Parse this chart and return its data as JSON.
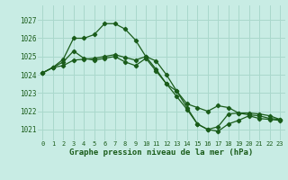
{
  "title": "Graphe pression niveau de la mer (hPa)",
  "bg_color": "#c8ece4",
  "grid_color": "#aad8cc",
  "line_color": "#1a5c1a",
  "marker_color": "#1a5c1a",
  "xlim": [
    -0.5,
    23.5
  ],
  "ylim": [
    1020.4,
    1027.8
  ],
  "yticks": [
    1021,
    1022,
    1023,
    1024,
    1025,
    1026,
    1027
  ],
  "xticks": [
    0,
    1,
    2,
    3,
    4,
    5,
    6,
    7,
    8,
    9,
    10,
    11,
    12,
    13,
    14,
    15,
    16,
    17,
    18,
    19,
    20,
    21,
    22,
    23
  ],
  "series1": [
    1024.1,
    1024.4,
    1024.5,
    1024.8,
    1024.85,
    1024.9,
    1025.0,
    1025.1,
    1024.95,
    1024.8,
    1025.0,
    1024.3,
    1023.5,
    1023.1,
    1022.4,
    1022.2,
    1022.0,
    1022.3,
    1022.2,
    1021.9,
    1021.8,
    1021.75,
    1021.6,
    1021.55
  ],
  "series2": [
    1024.1,
    1024.4,
    1024.85,
    1026.0,
    1026.0,
    1026.2,
    1026.8,
    1026.8,
    1026.5,
    1025.9,
    1025.0,
    1024.75,
    1024.0,
    1023.1,
    1022.2,
    1021.3,
    1021.0,
    1020.9,
    1021.3,
    1021.5,
    1021.75,
    1021.6,
    1021.55,
    1021.5
  ],
  "series3": [
    1024.1,
    1024.4,
    1024.7,
    1025.3,
    1024.9,
    1024.8,
    1024.9,
    1025.0,
    1024.7,
    1024.5,
    1024.9,
    1024.2,
    1023.5,
    1022.8,
    1022.1,
    1021.3,
    1021.0,
    1021.15,
    1021.85,
    1021.9,
    1021.9,
    1021.85,
    1021.75,
    1021.55
  ],
  "xlabel_fontsize": 6.5,
  "tick_fontsize": 5.0,
  "ylabel_fontsize": 5.5,
  "linewidth": 0.9,
  "markersize": 2.2
}
